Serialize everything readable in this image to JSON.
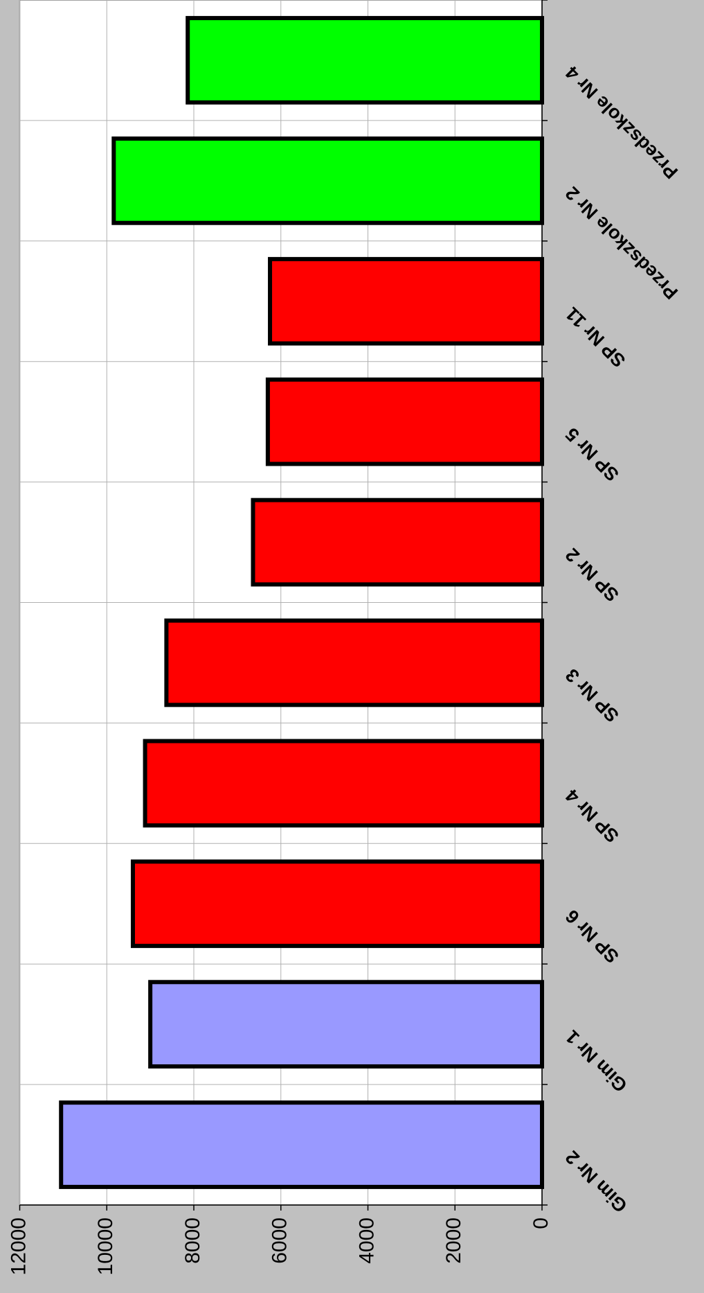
{
  "chart_data": {
    "type": "bar",
    "orientation": "rotated",
    "categories": [
      "Gim Nr 2",
      "Gim Nr 1",
      "SP Nr 6",
      "SP Nr 4",
      "SP Nr 3",
      "SP Nr 2",
      "SP Nr 5",
      "SP Nr 11",
      "Przedszkole Nr 2",
      "Przedszkole Nr 4"
    ],
    "values": [
      11050,
      9000,
      9400,
      9120,
      8630,
      6640,
      6300,
      6250,
      9840,
      8140
    ],
    "colors": [
      "#9999ff",
      "#9999ff",
      "#ff0000",
      "#ff0000",
      "#ff0000",
      "#ff0000",
      "#ff0000",
      "#ff0000",
      "#00ff00",
      "#00ff00"
    ],
    "ylim": [
      0,
      12000
    ],
    "yticks": [
      0,
      2000,
      4000,
      6000,
      8000,
      10000,
      12000
    ],
    "grid": true
  }
}
